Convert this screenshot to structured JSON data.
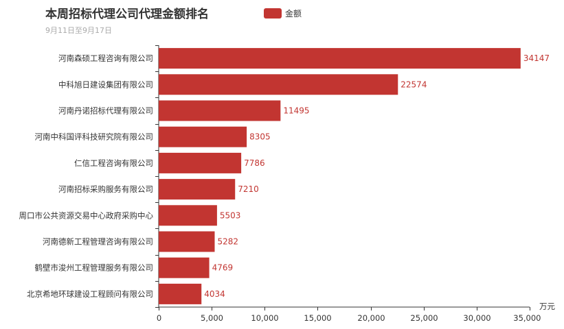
{
  "chart_data": {
    "type": "bar",
    "orientation": "horizontal",
    "title": "本周招标代理公司代理金额排名",
    "subtitle": "9月11日至9月17日",
    "legend": {
      "label": "金额",
      "position": "top"
    },
    "xlabel": "万元",
    "xlim": [
      0,
      35000
    ],
    "xticks": [
      0,
      5000,
      10000,
      15000,
      20000,
      25000,
      30000,
      35000
    ],
    "xtick_labels": [
      "0",
      "5,000",
      "10,000",
      "15,000",
      "20,000",
      "25,000",
      "30,000",
      "35,000"
    ],
    "grid": false,
    "color": "#c23531",
    "categories": [
      "河南森硕工程咨询有限公司",
      "中科旭日建设集团有限公司",
      "河南丹诺招标代理有限公司",
      "河南中科国评科技研究院有限公司",
      "仁信工程咨询有限公司",
      "河南招标采购服务有限公司",
      "周口市公共资源交易中心政府采购中心",
      "河南德新工程管理咨询有限公司",
      "鹤壁市浚州工程管理服务有限公司",
      "北京希地环球建设工程顾问有限公司"
    ],
    "values": [
      34147,
      22574,
      11495,
      8305,
      7786,
      7210,
      5503,
      5282,
      4769,
      4034
    ],
    "value_labels": [
      "34147",
      "22574",
      "11495",
      "8305",
      "7786",
      "7210",
      "5503",
      "5282",
      "4769",
      "4034"
    ]
  }
}
